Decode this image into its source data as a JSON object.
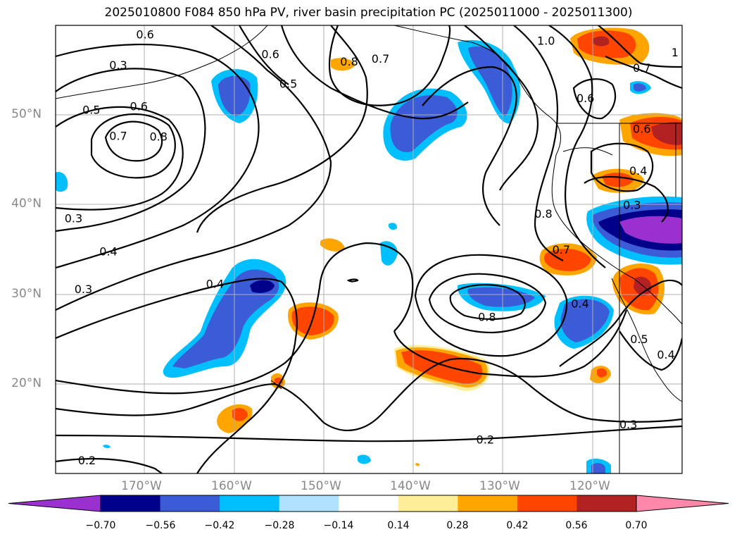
{
  "title": "2025010800 F084 850 hPa PV, river basin precipitation PC (2025011000 - 2025011300)",
  "axes": {
    "lat_labels": [
      "50°N",
      "40°N",
      "30°N",
      "20°N"
    ],
    "lon_labels": [
      "170°W",
      "160°W",
      "150°W",
      "140°W",
      "130°W",
      "120°W"
    ],
    "lon_range": [
      -180,
      -110
    ],
    "lat_range": [
      10,
      60
    ],
    "gridlines": true
  },
  "colorbar": {
    "ticks": [
      "−0.70",
      "−0.56",
      "−0.42",
      "−0.28",
      "−0.14",
      "0.14",
      "0.28",
      "0.42",
      "0.56",
      "0.70"
    ],
    "colors": [
      "#9b30d0",
      "#00008b",
      "#3c5bd6",
      "#00bfff",
      "#b0e2ff",
      "#ffffff",
      "#ffee99",
      "#ffa500",
      "#ff4500",
      "#b22222",
      "#ff88aa"
    ]
  },
  "contour_labels": [
    {
      "text": "0.6",
      "lon": -170.0,
      "lat": 59.0
    },
    {
      "text": "0.3",
      "lon": -173.0,
      "lat": 55.6
    },
    {
      "text": "0.5",
      "lon": -176.0,
      "lat": 50.6
    },
    {
      "text": "0.6",
      "lon": -170.7,
      "lat": 51.0
    },
    {
      "text": "0.7",
      "lon": -173.0,
      "lat": 47.7
    },
    {
      "text": "0.8",
      "lon": -168.5,
      "lat": 47.6
    },
    {
      "text": "0.6",
      "lon": -156.0,
      "lat": 56.8
    },
    {
      "text": "0.5",
      "lon": -154.0,
      "lat": 53.5
    },
    {
      "text": "0.8",
      "lon": -147.2,
      "lat": 56.0
    },
    {
      "text": "0.7",
      "lon": -143.7,
      "lat": 56.3
    },
    {
      "text": "1.0",
      "lon": -125.2,
      "lat": 58.3
    },
    {
      "text": "1",
      "lon": -110.8,
      "lat": 57.0
    },
    {
      "text": "0.7",
      "lon": -114.5,
      "lat": 55.3
    },
    {
      "text": "0.6",
      "lon": -120.8,
      "lat": 51.9
    },
    {
      "text": "0.6",
      "lon": -114.5,
      "lat": 48.5
    },
    {
      "text": "0.4",
      "lon": -114.9,
      "lat": 43.8
    },
    {
      "text": "0.3",
      "lon": -115.6,
      "lat": 40.0
    },
    {
      "text": "0.8",
      "lon": -125.5,
      "lat": 39.0
    },
    {
      "text": "0.7",
      "lon": -123.5,
      "lat": 35.0
    },
    {
      "text": "0.4",
      "lon": -121.4,
      "lat": 29.0
    },
    {
      "text": "0.8",
      "lon": -131.8,
      "lat": 27.5
    },
    {
      "text": "0.5",
      "lon": -114.8,
      "lat": 25.0
    },
    {
      "text": "0.4",
      "lon": -111.8,
      "lat": 23.3
    },
    {
      "text": "0.3",
      "lon": -116.0,
      "lat": 15.5
    },
    {
      "text": "0.2",
      "lon": -132.0,
      "lat": 13.8
    },
    {
      "text": "0.2",
      "lon": -176.5,
      "lat": 11.5
    },
    {
      "text": "0.3",
      "lon": -178.0,
      "lat": 38.5
    },
    {
      "text": "0.4",
      "lon": -174.1,
      "lat": 34.8
    },
    {
      "text": "0.3",
      "lon": -176.9,
      "lat": 30.6
    },
    {
      "text": "0.4",
      "lon": -162.2,
      "lat": 31.2
    }
  ]
}
